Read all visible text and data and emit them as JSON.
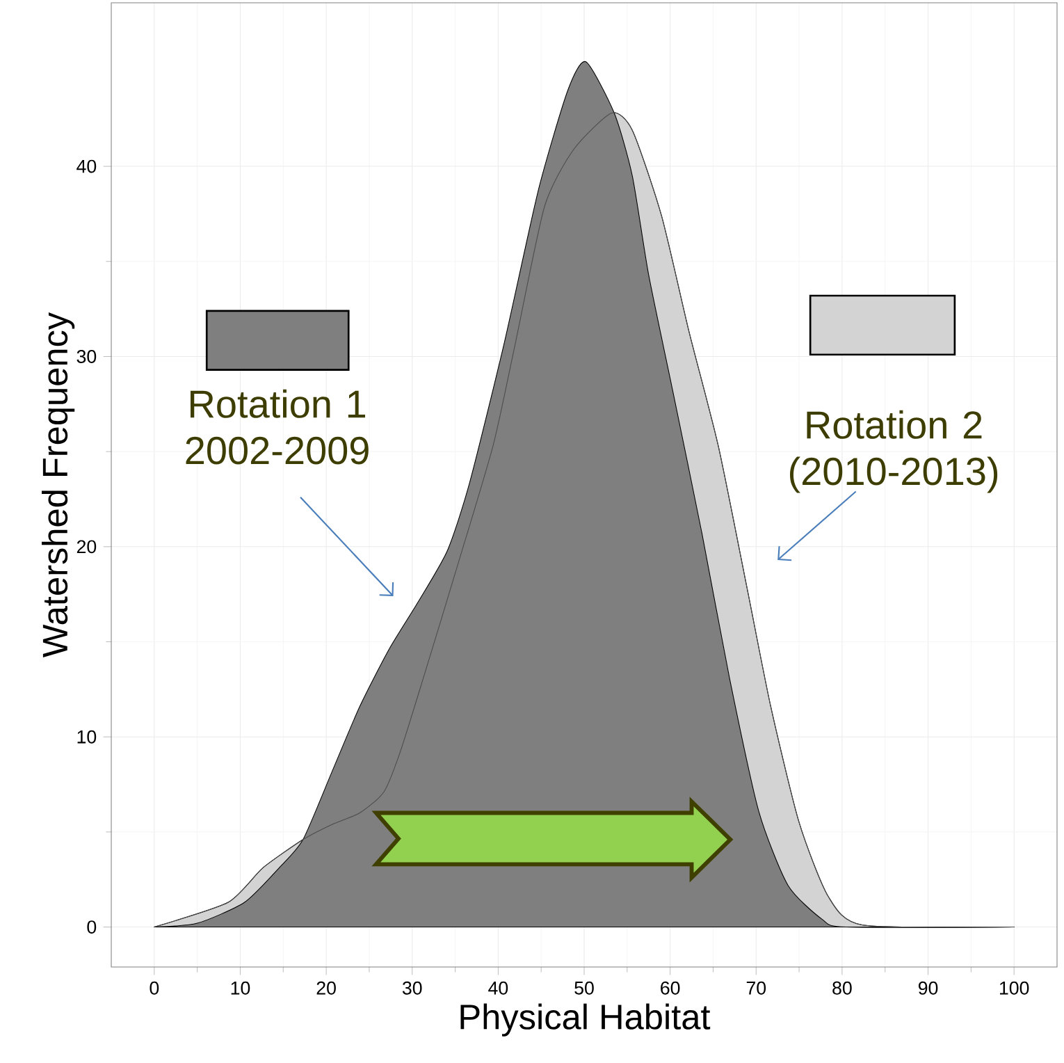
{
  "chart_data": {
    "type": "area",
    "xlabel": "Physical Habitat",
    "ylabel": "Watershed Frequency",
    "xlim": [
      -5,
      105
    ],
    "ylim": [
      -2.1,
      48.6
    ],
    "xticks": [
      0,
      10,
      20,
      30,
      40,
      50,
      60,
      70,
      80,
      90,
      100
    ],
    "yticks": [
      0,
      10,
      20,
      30,
      40
    ],
    "grid": true,
    "legend": "top",
    "series": [
      {
        "name": "Rotation 2 (2010-2013)",
        "color": "#d3d3d3",
        "x": [
          0,
          8.6,
          12.6,
          17.3,
          20.7,
          23.9,
          26.7,
          28.6,
          31.3,
          35.4,
          39.4,
          42,
          45.4,
          48.8,
          53.2,
          55.6,
          59,
          62.2,
          65.6,
          69,
          71.7,
          75,
          78.4,
          82.4,
          100
        ],
        "values": [
          0,
          1.3,
          3.1,
          4.6,
          5.4,
          6.0,
          7.1,
          9.2,
          13.1,
          19.2,
          25.3,
          30.7,
          37.9,
          40.9,
          42.8,
          41.9,
          37.4,
          31.3,
          25.3,
          17.7,
          11.6,
          5.5,
          1.6,
          0.1,
          0
        ]
      },
      {
        "name": "Rotation 1 2002-2009",
        "color": "#7f7f7f",
        "x": [
          0,
          5,
          10.5,
          14.5,
          17.3,
          20.7,
          23.9,
          27.3,
          30.7,
          34.1,
          36.7,
          40.7,
          44.7,
          48.1,
          50.2,
          53.5,
          55.6,
          57.5,
          60.3,
          63.7,
          66.9,
          70.3,
          73.7,
          77.7,
          80.5,
          100
        ],
        "values": [
          0,
          0.2,
          1.3,
          3.1,
          4.6,
          8.2,
          11.6,
          14.6,
          17.1,
          19.8,
          23.4,
          30.7,
          38.8,
          44,
          45.5,
          42.8,
          39.5,
          34.3,
          28.2,
          20.7,
          13.1,
          6.1,
          2.2,
          0.4,
          0,
          0
        ]
      }
    ]
  }
}
